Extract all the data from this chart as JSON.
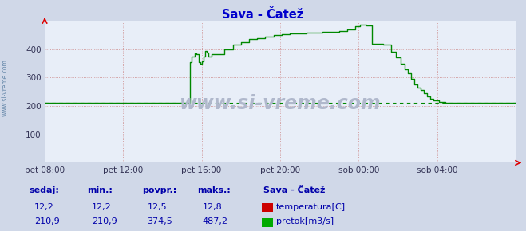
{
  "title": "Sava - Čatež",
  "title_color": "#0000cc",
  "bg_color": "#d0d8e8",
  "plot_bg_color": "#e8eef8",
  "grid_color": "#cc8888",
  "axis_color": "#ff0000",
  "xlim": [
    0,
    288
  ],
  "ylim": [
    0,
    500
  ],
  "yticks": [
    100,
    200,
    300,
    400
  ],
  "xtick_labels": [
    "pet 08:00",
    "pet 12:00",
    "pet 16:00",
    "pet 20:00",
    "sob 00:00",
    "sob 04:00"
  ],
  "xtick_positions": [
    0,
    48,
    96,
    144,
    192,
    240
  ],
  "watermark": "www.si-vreme.com",
  "sidebar_text": "www.si-vreme.com",
  "flow_color": "#008800",
  "avg_flow": 210.9,
  "footer_label_color": "#0000aa",
  "footer_value_color": "#0000aa",
  "sedaj_t": "12,2",
  "min_t": "12,2",
  "povpr_t": "12,5",
  "maks_t": "12,8",
  "sedaj_flow": "210,9",
  "min_flow": "210,9",
  "povpr_flow": "374,5",
  "maks_flow": "487,2",
  "temp_legend_color": "#cc0000",
  "flow_legend_color": "#00aa00"
}
